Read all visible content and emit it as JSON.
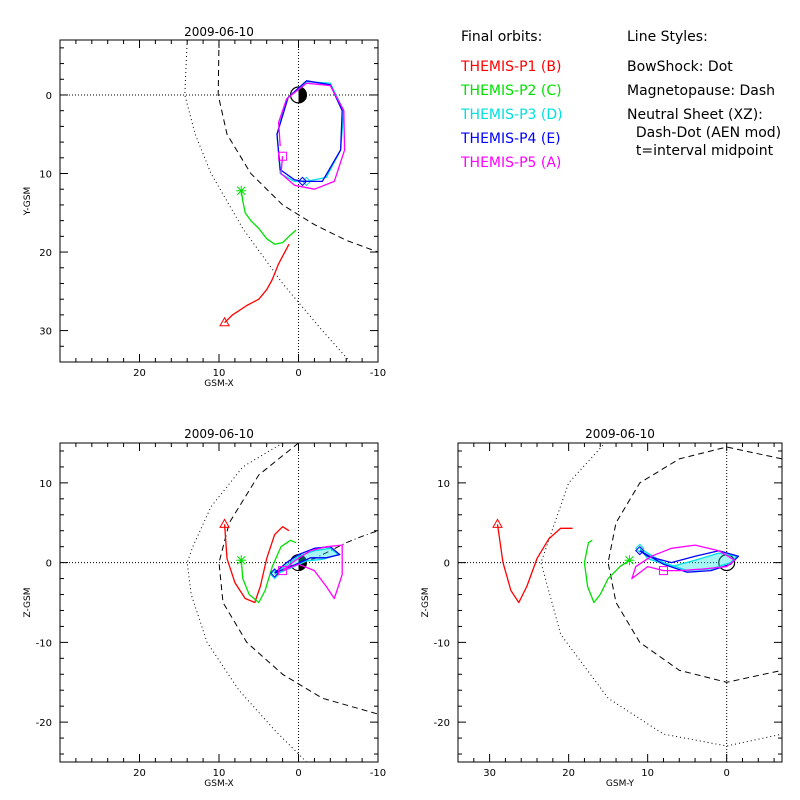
{
  "colors": {
    "THEMIS-P1": "#ff0000",
    "THEMIS-P2": "#00e000",
    "THEMIS-P3": "#00e0e0",
    "THEMIS-P4": "#0000ff",
    "THEMIS-P5": "#ff00ff",
    "axes": "#000000"
  },
  "legend": {
    "orbits_title": "Final orbits:",
    "orbits": [
      {
        "label": "THEMIS-P1 (B)",
        "color_key": "THEMIS-P1"
      },
      {
        "label": "THEMIS-P2 (C)",
        "color_key": "THEMIS-P2"
      },
      {
        "label": "THEMIS-P3 (D)",
        "color_key": "THEMIS-P3"
      },
      {
        "label": "THEMIS-P4 (E)",
        "color_key": "THEMIS-P4"
      },
      {
        "label": "THEMIS-P5 (A)",
        "color_key": "THEMIS-P5"
      }
    ],
    "styles_title": "Line Styles:",
    "styles": [
      "BowShock: Dot",
      "Magnetopause: Dash",
      "Neutral Sheet (XZ):",
      "  Dash-Dot (AEN mod)",
      "  t=interval midpoint"
    ]
  },
  "chart_data": [
    {
      "type": "line",
      "title": "2009-06-10",
      "xlabel": "GSM-X",
      "ylabel": "Y-GSM",
      "xlim": [
        30,
        -10
      ],
      "ylim": [
        34,
        -7
      ],
      "xticks": [
        20,
        10,
        0,
        -10
      ],
      "yticks": [
        0,
        10,
        20,
        30
      ],
      "grid": false,
      "earth": true,
      "boundaries": [
        {
          "name": "bowshock",
          "style": "dot",
          "points": [
            [
              14,
              -7
            ],
            [
              14.3,
              0
            ],
            [
              13,
              5
            ],
            [
              11,
              10
            ],
            [
              7,
              17
            ],
            [
              2,
              24
            ],
            [
              -3,
              30
            ],
            [
              -6.5,
              34
            ]
          ]
        },
        {
          "name": "magnetopause",
          "style": "dash",
          "points": [
            [
              10,
              -7
            ],
            [
              10.1,
              0
            ],
            [
              9,
              5
            ],
            [
              6,
              10
            ],
            [
              2,
              14
            ],
            [
              -2,
              16.5
            ],
            [
              -6,
              18.5
            ],
            [
              -10,
              20
            ]
          ]
        }
      ],
      "series": [
        {
          "name": "THEMIS-P1 (B)",
          "color_key": "THEMIS-P1",
          "marker": "triangle",
          "points": [
            [
              9.3,
              29
            ],
            [
              8.3,
              28
            ],
            [
              6.5,
              26.8
            ],
            [
              5,
              26
            ],
            [
              4,
              24.8
            ],
            [
              3.3,
              23.5
            ],
            [
              2.5,
              21.5
            ],
            [
              1.2,
              19
            ]
          ]
        },
        {
          "name": "THEMIS-P2 (C)",
          "color_key": "THEMIS-P2",
          "marker": "asterisk",
          "points": [
            [
              7.2,
              12.2
            ],
            [
              7,
              13.5
            ],
            [
              6.7,
              15
            ],
            [
              6,
              16
            ],
            [
              5,
              17
            ],
            [
              4,
              18.3
            ],
            [
              3,
              19
            ],
            [
              2,
              18.8
            ],
            [
              1.2,
              18
            ],
            [
              0.3,
              17.2
            ]
          ]
        },
        {
          "name": "THEMIS-P3 (D)",
          "color_key": "THEMIS-P3",
          "marker": "diamond",
          "points": [
            [
              -1,
              11
            ],
            [
              -3.5,
              10.5
            ],
            [
              -5.3,
              7
            ],
            [
              -5.7,
              2
            ],
            [
              -4,
              -1.5
            ],
            [
              -1,
              -1.7
            ],
            [
              1.5,
              0.5
            ],
            [
              2.7,
              5
            ],
            [
              2.3,
              10
            ],
            [
              0.5,
              11
            ],
            [
              -1,
              11
            ]
          ]
        },
        {
          "name": "THEMIS-P4 (E)",
          "color_key": "THEMIS-P4",
          "marker": "diamond",
          "points": [
            [
              -0.5,
              11
            ],
            [
              -3,
              11
            ],
            [
              -5.3,
              7
            ],
            [
              -5.5,
              2
            ],
            [
              -4,
              -1.3
            ],
            [
              -1,
              -1.8
            ],
            [
              1.3,
              0.3
            ],
            [
              2.7,
              5
            ],
            [
              2.3,
              9.5
            ],
            [
              0.5,
              10.8
            ],
            [
              -0.5,
              11
            ]
          ]
        },
        {
          "name": "THEMIS-P5 (A)",
          "color_key": "THEMIS-P5",
          "marker": "square",
          "points": [
            [
              2,
              7.8
            ],
            [
              2.2,
              10
            ],
            [
              0.5,
              11.5
            ],
            [
              -2,
              12
            ],
            [
              -4.5,
              11
            ],
            [
              -5.8,
              7
            ],
            [
              -5.7,
              2
            ],
            [
              -4,
              -1.2
            ],
            [
              -1,
              -1.5
            ],
            [
              1.5,
              0.5
            ],
            [
              2.5,
              3.5
            ],
            [
              2.3,
              6.5
            ]
          ]
        }
      ]
    },
    {
      "type": "line",
      "title": "2009-06-10",
      "xlabel": "GSM-X",
      "ylabel": "Z-GSM",
      "xlim": [
        30,
        -10
      ],
      "ylim": [
        -25,
        15
      ],
      "xticks": [
        20,
        10,
        0,
        -10
      ],
      "yticks": [
        10,
        0,
        -10,
        -20
      ],
      "grid": false,
      "earth": true,
      "boundaries": [
        {
          "name": "bowshock",
          "style": "dot",
          "points": [
            [
              2,
              15
            ],
            [
              7,
              12
            ],
            [
              11,
              7
            ],
            [
              13.3,
              2
            ],
            [
              14,
              0
            ],
            [
              13.5,
              -4
            ],
            [
              11.5,
              -10
            ],
            [
              7.5,
              -16
            ],
            [
              3,
              -21
            ],
            [
              -1,
              -25
            ]
          ]
        },
        {
          "name": "magnetopause",
          "style": "dash",
          "points": [
            [
              0,
              15
            ],
            [
              5,
              11
            ],
            [
              8.7,
              5
            ],
            [
              10,
              0
            ],
            [
              9.5,
              -5
            ],
            [
              6.5,
              -10
            ],
            [
              2,
              -14
            ],
            [
              -3,
              -17
            ],
            [
              -10,
              -19
            ]
          ]
        },
        {
          "name": "neutral-sheet",
          "style": "dashdot",
          "points": [
            [
              0,
              0
            ],
            [
              -2,
              0.5
            ],
            [
              -4,
              1.5
            ],
            [
              -6,
              2.5
            ],
            [
              -8,
              3.3
            ],
            [
              -10,
              4
            ]
          ]
        }
      ],
      "series": [
        {
          "name": "THEMIS-P1 (B)",
          "color_key": "THEMIS-P1",
          "marker": "triangle",
          "points": [
            [
              9.3,
              4.8
            ],
            [
              9,
              0.5
            ],
            [
              8,
              -2.5
            ],
            [
              6.7,
              -4.5
            ],
            [
              5.5,
              -5
            ],
            [
              4.8,
              -3
            ],
            [
              4,
              0.5
            ],
            [
              3,
              3.5
            ],
            [
              2,
              4.5
            ],
            [
              1.2,
              4
            ]
          ]
        },
        {
          "name": "THEMIS-P2 (C)",
          "color_key": "THEMIS-P2",
          "marker": "asterisk",
          "points": [
            [
              7.2,
              0.3
            ],
            [
              7,
              -2
            ],
            [
              6.2,
              -4
            ],
            [
              5,
              -5
            ],
            [
              4.2,
              -3.5
            ],
            [
              3.3,
              -0.5
            ],
            [
              2.2,
              2
            ],
            [
              1,
              2.8
            ],
            [
              0.3,
              2.5
            ]
          ]
        },
        {
          "name": "THEMIS-P3 (D)",
          "color_key": "THEMIS-P3",
          "marker": "diamond",
          "points": [
            [
              3,
              -1.5
            ],
            [
              1.5,
              -0.3
            ],
            [
              0,
              0.8
            ],
            [
              -2,
              1.5
            ],
            [
              -4,
              1.8
            ],
            [
              -5,
              1
            ],
            [
              -3,
              0.4
            ],
            [
              -1,
              0.2
            ],
            [
              1,
              -0.7
            ],
            [
              3,
              -1.5
            ]
          ]
        },
        {
          "name": "THEMIS-P4 (E)",
          "color_key": "THEMIS-P4",
          "marker": "diamond",
          "points": [
            [
              3,
              -1.3
            ],
            [
              1.5,
              0
            ],
            [
              0,
              1
            ],
            [
              -2,
              1.8
            ],
            [
              -4,
              2
            ],
            [
              -5.2,
              1
            ],
            [
              -3.5,
              0.6
            ],
            [
              -1.5,
              0.6
            ],
            [
              0.5,
              -0.3
            ],
            [
              3,
              -1.3
            ]
          ]
        },
        {
          "name": "THEMIS-P5 (A)",
          "color_key": "THEMIS-P5",
          "marker": "square",
          "points": [
            [
              2,
              -1
            ],
            [
              0.5,
              0.2
            ],
            [
              -1.5,
              1.5
            ],
            [
              -3.5,
              2
            ],
            [
              -5.5,
              2.2
            ],
            [
              -5.5,
              -1.5
            ],
            [
              -4.5,
              -4.5
            ],
            [
              -3.5,
              -3
            ],
            [
              -2,
              -1
            ],
            [
              0,
              -0.2
            ],
            [
              2,
              -1
            ]
          ]
        }
      ]
    },
    {
      "type": "line",
      "title": "2009-06-10",
      "xlabel": "GSM-Y",
      "ylabel": "Z-GSM",
      "xlim": [
        34,
        -7
      ],
      "ylim": [
        -25,
        15
      ],
      "xticks": [
        30,
        20,
        10,
        0
      ],
      "yticks": [
        10,
        0,
        -10,
        -20
      ],
      "grid": false,
      "earth": true,
      "boundaries": [
        {
          "name": "bowshock",
          "style": "dot",
          "points": [
            [
              -7,
              22
            ],
            [
              0,
              23
            ],
            [
              8,
              21
            ],
            [
              14,
              16.5
            ],
            [
              20,
              10
            ],
            [
              23.5,
              0
            ],
            [
              21,
              -9
            ],
            [
              15,
              -17
            ],
            [
              8,
              -21.5
            ],
            [
              0,
              -23
            ],
            [
              -7,
              -21.5
            ]
          ]
        },
        {
          "name": "magnetopause",
          "style": "dash",
          "points": [
            [
              -7,
              13
            ],
            [
              0,
              14.5
            ],
            [
              6,
              13
            ],
            [
              11,
              10
            ],
            [
              14,
              5
            ],
            [
              15,
              0
            ],
            [
              14,
              -5
            ],
            [
              11,
              -10
            ],
            [
              6,
              -13.5
            ],
            [
              0,
              -15
            ],
            [
              -7,
              -13.5
            ]
          ]
        }
      ],
      "series": [
        {
          "name": "THEMIS-P1 (B)",
          "color_key": "THEMIS-P1",
          "marker": "triangle",
          "points": [
            [
              29,
              4.8
            ],
            [
              28.3,
              0
            ],
            [
              27.3,
              -3.5
            ],
            [
              26.3,
              -5
            ],
            [
              25.3,
              -3
            ],
            [
              24,
              0.5
            ],
            [
              22.5,
              3
            ],
            [
              21,
              4.3
            ],
            [
              19.5,
              4.3
            ]
          ]
        },
        {
          "name": "THEMIS-P2 (C)",
          "color_key": "THEMIS-P2",
          "marker": "asterisk",
          "points": [
            [
              12.3,
              0.3
            ],
            [
              13.5,
              -0.5
            ],
            [
              15,
              -2
            ],
            [
              16,
              -4
            ],
            [
              16.8,
              -5
            ],
            [
              17.6,
              -3
            ],
            [
              18,
              0
            ],
            [
              17.5,
              2.5
            ],
            [
              17,
              2.8
            ]
          ]
        },
        {
          "name": "THEMIS-P3 (D)",
          "color_key": "THEMIS-P3",
          "marker": "diamond",
          "points": [
            [
              11,
              1.8
            ],
            [
              8,
              0
            ],
            [
              5,
              -1
            ],
            [
              2,
              -0.8
            ],
            [
              -0.5,
              0
            ],
            [
              -1.3,
              0.8
            ],
            [
              1,
              1.2
            ],
            [
              4,
              0.3
            ],
            [
              7,
              -0.5
            ],
            [
              10,
              0.5
            ],
            [
              11,
              1.8
            ]
          ]
        },
        {
          "name": "THEMIS-P4 (E)",
          "color_key": "THEMIS-P4",
          "marker": "diamond",
          "points": [
            [
              11,
              1.5
            ],
            [
              8,
              -0.2
            ],
            [
              5,
              -1.2
            ],
            [
              2,
              -1
            ],
            [
              -0.5,
              -0.2
            ],
            [
              -1.5,
              0.8
            ],
            [
              1,
              1.5
            ],
            [
              4,
              0.8
            ],
            [
              7,
              0
            ],
            [
              10,
              0.8
            ],
            [
              11,
              1.5
            ]
          ]
        },
        {
          "name": "THEMIS-P5 (A)",
          "color_key": "THEMIS-P5",
          "marker": "square",
          "points": [
            [
              8,
              -1
            ],
            [
              10,
              -0.5
            ],
            [
              12,
              -2
            ],
            [
              11.5,
              -0.5
            ],
            [
              9.5,
              0.8
            ],
            [
              7,
              1.8
            ],
            [
              4,
              2.2
            ],
            [
              1,
              1.5
            ],
            [
              -1,
              0.3
            ],
            [
              0,
              -0.5
            ],
            [
              3,
              -0.8
            ],
            [
              6,
              -1
            ],
            [
              8,
              -1
            ]
          ]
        }
      ]
    }
  ]
}
